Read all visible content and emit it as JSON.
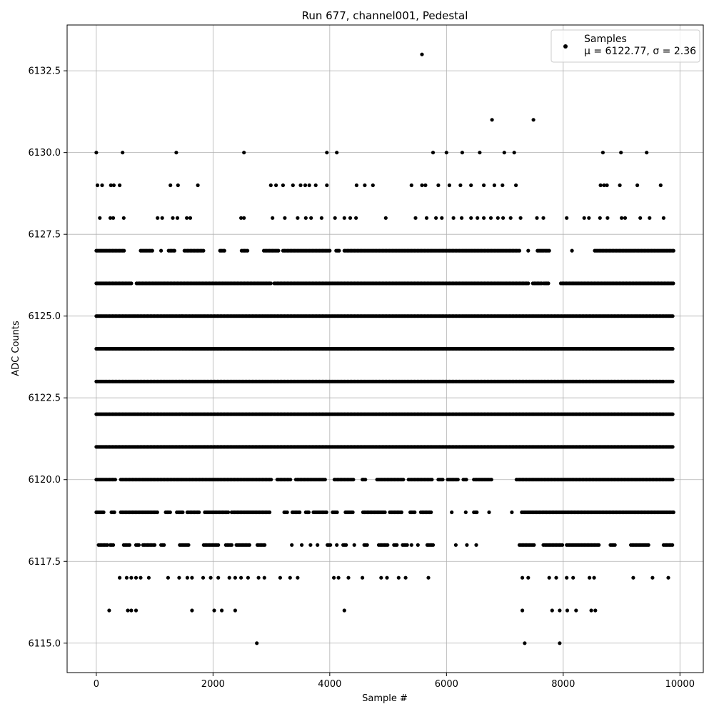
{
  "chart_data": {
    "type": "scatter",
    "title": "Run 677, channel001, Pedestal",
    "xlabel": "Sample #",
    "ylabel": "ADC Counts",
    "xlim": [
      -500,
      10400
    ],
    "ylim": [
      6114.1,
      6133.9
    ],
    "xticks": [
      0,
      2000,
      4000,
      6000,
      8000,
      10000
    ],
    "yticks": [
      6115.0,
      6117.5,
      6120.0,
      6122.5,
      6125.0,
      6127.5,
      6130.0,
      6132.5
    ],
    "xtick_labels": [
      "0",
      "2000",
      "4000",
      "6000",
      "8000",
      "10000"
    ],
    "ytick_labels": [
      "6115.0",
      "6117.5",
      "6120.0",
      "6122.5",
      "6125.0",
      "6127.5",
      "6130.0",
      "6132.5"
    ],
    "grid": true,
    "legend_position": "top-right",
    "marker_color": "#000000",
    "series": [
      {
        "name": "Samples",
        "stats_label": "μ = 6122.77, σ = 2.36",
        "points": [
          [
            5580,
            6133
          ],
          [
            6780,
            6131
          ],
          [
            7490,
            6131
          ],
          [
            0,
            6130
          ],
          [
            450,
            6130
          ],
          [
            1370,
            6130
          ],
          [
            2530,
            6130
          ],
          [
            3950,
            6130
          ],
          [
            4120,
            6130
          ],
          [
            5770,
            6130
          ],
          [
            6000,
            6130
          ],
          [
            6270,
            6130
          ],
          [
            6570,
            6130
          ],
          [
            6990,
            6130
          ],
          [
            7160,
            6130
          ],
          [
            8680,
            6130
          ],
          [
            8990,
            6130
          ],
          [
            9430,
            6130
          ],
          [
            20,
            6129
          ],
          [
            100,
            6129
          ],
          [
            250,
            6129
          ],
          [
            300,
            6129
          ],
          [
            400,
            6129
          ],
          [
            1270,
            6129
          ],
          [
            1400,
            6129
          ],
          [
            1740,
            6129
          ],
          [
            2990,
            6129
          ],
          [
            3080,
            6129
          ],
          [
            3200,
            6129
          ],
          [
            3370,
            6129
          ],
          [
            3500,
            6129
          ],
          [
            3580,
            6129
          ],
          [
            3650,
            6129
          ],
          [
            3760,
            6129
          ],
          [
            3950,
            6129
          ],
          [
            4460,
            6129
          ],
          [
            4600,
            6129
          ],
          [
            4740,
            6129
          ],
          [
            5400,
            6129
          ],
          [
            5580,
            6129
          ],
          [
            5640,
            6129
          ],
          [
            5860,
            6129
          ],
          [
            6050,
            6129
          ],
          [
            6240,
            6129
          ],
          [
            6420,
            6129
          ],
          [
            6640,
            6129
          ],
          [
            6820,
            6129
          ],
          [
            6960,
            6129
          ],
          [
            7190,
            6129
          ],
          [
            8640,
            6129
          ],
          [
            8700,
            6129
          ],
          [
            8750,
            6129
          ],
          [
            8970,
            6129
          ],
          [
            9270,
            6129
          ],
          [
            9670,
            6129
          ],
          [
            60,
            6128
          ],
          [
            240,
            6128
          ],
          [
            290,
            6128
          ],
          [
            470,
            6128
          ],
          [
            1050,
            6128
          ],
          [
            1130,
            6128
          ],
          [
            1310,
            6128
          ],
          [
            1390,
            6128
          ],
          [
            1550,
            6128
          ],
          [
            1610,
            6128
          ],
          [
            2480,
            6128
          ],
          [
            2530,
            6128
          ],
          [
            3020,
            6128
          ],
          [
            3230,
            6128
          ],
          [
            3450,
            6128
          ],
          [
            3590,
            6128
          ],
          [
            3680,
            6128
          ],
          [
            3860,
            6128
          ],
          [
            4090,
            6128
          ],
          [
            4250,
            6128
          ],
          [
            4350,
            6128
          ],
          [
            4450,
            6128
          ],
          [
            4960,
            6128
          ],
          [
            5470,
            6128
          ],
          [
            5660,
            6128
          ],
          [
            5820,
            6128
          ],
          [
            5920,
            6128
          ],
          [
            6120,
            6128
          ],
          [
            6260,
            6128
          ],
          [
            6420,
            6128
          ],
          [
            6530,
            6128
          ],
          [
            6640,
            6128
          ],
          [
            6760,
            6128
          ],
          [
            6880,
            6128
          ],
          [
            6970,
            6128
          ],
          [
            7100,
            6128
          ],
          [
            7270,
            6128
          ],
          [
            7550,
            6128
          ],
          [
            7660,
            6128
          ],
          [
            8060,
            6128
          ],
          [
            8360,
            6128
          ],
          [
            8440,
            6128
          ],
          [
            8630,
            6128
          ],
          [
            8760,
            6128
          ],
          [
            9000,
            6128
          ],
          [
            9060,
            6128
          ],
          [
            9320,
            6128
          ],
          [
            9480,
            6128
          ],
          [
            9720,
            6128
          ],
          [
            2750,
            6115
          ],
          [
            7340,
            6115
          ],
          [
            7940,
            6115
          ],
          [
            220,
            6116
          ],
          [
            540,
            6116
          ],
          [
            600,
            6116
          ],
          [
            680,
            6116
          ],
          [
            1640,
            6116
          ],
          [
            2020,
            6116
          ],
          [
            2150,
            6116
          ],
          [
            2380,
            6116
          ],
          [
            4250,
            6116
          ],
          [
            7300,
            6116
          ],
          [
            7810,
            6116
          ],
          [
            7940,
            6116
          ],
          [
            8070,
            6116
          ],
          [
            8220,
            6116
          ],
          [
            8480,
            6116
          ],
          [
            8550,
            6116
          ],
          [
            400,
            6117
          ],
          [
            520,
            6117
          ],
          [
            600,
            6117
          ],
          [
            680,
            6117
          ],
          [
            760,
            6117
          ],
          [
            900,
            6117
          ],
          [
            1230,
            6117
          ],
          [
            1420,
            6117
          ],
          [
            1560,
            6117
          ],
          [
            1640,
            6117
          ],
          [
            1830,
            6117
          ],
          [
            1960,
            6117
          ],
          [
            2090,
            6117
          ],
          [
            2280,
            6117
          ],
          [
            2380,
            6117
          ],
          [
            2480,
            6117
          ],
          [
            2600,
            6117
          ],
          [
            2780,
            6117
          ],
          [
            2880,
            6117
          ],
          [
            3150,
            6117
          ],
          [
            3320,
            6117
          ],
          [
            3450,
            6117
          ],
          [
            4070,
            6117
          ],
          [
            4150,
            6117
          ],
          [
            4320,
            6117
          ],
          [
            4560,
            6117
          ],
          [
            4880,
            6117
          ],
          [
            4980,
            6117
          ],
          [
            5180,
            6117
          ],
          [
            5300,
            6117
          ],
          [
            5690,
            6117
          ],
          [
            7300,
            6117
          ],
          [
            7400,
            6117
          ],
          [
            7760,
            6117
          ],
          [
            7880,
            6117
          ],
          [
            8060,
            6117
          ],
          [
            8170,
            6117
          ],
          [
            8450,
            6117
          ],
          [
            8530,
            6117
          ],
          [
            9200,
            6117
          ],
          [
            9530,
            6117
          ],
          [
            9800,
            6117
          ]
        ],
        "rows": [
          {
            "y": 6127,
            "ranges": [
              [
                0,
                490
              ],
              [
                760,
                960
              ],
              [
                1110,
                1110
              ],
              [
                1240,
                1340
              ],
              [
                1510,
                1840
              ],
              [
                2120,
                2210
              ],
              [
                2490,
                2600
              ],
              [
                2870,
                3120
              ],
              [
                3200,
                4000
              ],
              [
                4110,
                4160
              ],
              [
                4250,
                7270
              ],
              [
                7400,
                7410
              ],
              [
                7560,
                7780
              ],
              [
                8150,
                8160
              ],
              [
                8540,
                9890
              ]
            ]
          },
          {
            "y": 6126,
            "ranges": [
              [
                0,
                600
              ],
              [
                690,
                2990
              ],
              [
                3050,
                7400
              ],
              [
                7480,
                7640
              ],
              [
                7670,
                7760
              ],
              [
                7960,
                9890
              ]
            ]
          },
          {
            "y": 6125,
            "ranges": [
              [
                0,
                9890
              ]
            ]
          },
          {
            "y": 6124,
            "ranges": [
              [
                0,
                9890
              ]
            ]
          },
          {
            "y": 6123,
            "ranges": [
              [
                0,
                9890
              ]
            ]
          },
          {
            "y": 6122,
            "ranges": [
              [
                0,
                9890
              ]
            ]
          },
          {
            "y": 6121,
            "ranges": [
              [
                0,
                9890
              ]
            ]
          },
          {
            "y": 6120,
            "ranges": [
              [
                0,
                340
              ],
              [
                420,
                3010
              ],
              [
                3100,
                3340
              ],
              [
                3420,
                3920
              ],
              [
                4080,
                4410
              ],
              [
                4560,
                4620
              ],
              [
                4810,
                5270
              ],
              [
                5350,
                5750
              ],
              [
                5860,
                5940
              ],
              [
                6020,
                6210
              ],
              [
                6290,
                6350
              ],
              [
                6470,
                6770
              ],
              [
                7200,
                9890
              ]
            ]
          },
          {
            "y": 6119,
            "ranges": [
              [
                0,
                130
              ],
              [
                260,
                310
              ],
              [
                420,
                1060
              ],
              [
                1190,
                1270
              ],
              [
                1380,
                1490
              ],
              [
                1560,
                1770
              ],
              [
                1860,
                2270
              ],
              [
                2320,
                2990
              ],
              [
                3220,
                3290
              ],
              [
                3360,
                3500
              ],
              [
                3590,
                3650
              ],
              [
                3720,
                3960
              ],
              [
                4050,
                4130
              ],
              [
                4270,
                4410
              ],
              [
                4570,
                4960
              ],
              [
                5030,
                5250
              ],
              [
                5380,
                5460
              ],
              [
                5560,
                5750
              ],
              [
                6090,
                6100
              ],
              [
                6330,
                6340
              ],
              [
                6470,
                6520
              ],
              [
                6730,
                6740
              ],
              [
                7120,
                7130
              ],
              [
                7290,
                9890
              ]
            ]
          },
          {
            "y": 6118,
            "ranges": [
              [
                40,
                200
              ],
              [
                240,
                300
              ],
              [
                470,
                580
              ],
              [
                680,
                740
              ],
              [
                800,
                1020
              ],
              [
                1110,
                1180
              ],
              [
                1430,
                1590
              ],
              [
                1840,
                2110
              ],
              [
                2220,
                2320
              ],
              [
                2400,
                2630
              ],
              [
                2760,
                2900
              ],
              [
                3350,
                3360
              ],
              [
                3520,
                3530
              ],
              [
                3670,
                3680
              ],
              [
                3790,
                3800
              ],
              [
                3960,
                4030
              ],
              [
                4120,
                4140
              ],
              [
                4230,
                4290
              ],
              [
                4420,
                4440
              ],
              [
                4590,
                4660
              ],
              [
                4840,
                5010
              ],
              [
                5100,
                5150
              ],
              [
                5250,
                5330
              ],
              [
                5400,
                5410
              ],
              [
                5510,
                5520
              ],
              [
                5670,
                5780
              ],
              [
                6160,
                6170
              ],
              [
                6350,
                6360
              ],
              [
                6510,
                6520
              ],
              [
                7250,
                7500
              ],
              [
                7660,
                7990
              ],
              [
                8060,
                8610
              ],
              [
                8810,
                8890
              ],
              [
                9160,
                9480
              ],
              [
                9720,
                9890
              ]
            ]
          }
        ],
        "row_step": 25
      }
    ]
  }
}
